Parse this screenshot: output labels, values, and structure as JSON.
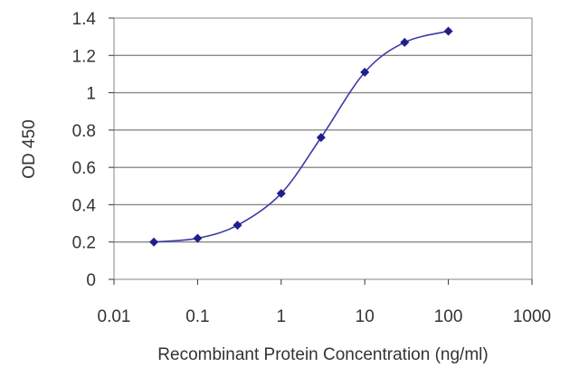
{
  "chart_data": {
    "type": "scatter",
    "title": "",
    "xlabel": "Recombinant Protein Concentration (ng/ml)",
    "ylabel": "OD 450",
    "x_scale": "log",
    "xlim": [
      0.01,
      1000
    ],
    "ylim": [
      0,
      1.4
    ],
    "x_tick_labels": [
      "0.01",
      "0.1",
      "1",
      "10",
      "100",
      "1000"
    ],
    "x_tick_values": [
      0.01,
      0.1,
      1,
      10,
      100,
      1000
    ],
    "y_tick_labels": [
      "0",
      "0.2",
      "0.4",
      "0.6",
      "0.8",
      "1",
      "1.2",
      "1.4"
    ],
    "y_tick_values": [
      0,
      0.2,
      0.4,
      0.6,
      0.8,
      1.0,
      1.2,
      1.4
    ],
    "grid": "horizontal",
    "fit_curve": "sigmoid",
    "series": [
      {
        "x": [
          0.03,
          0.1,
          0.3,
          1,
          3,
          10,
          30,
          100
        ],
        "y": [
          0.2,
          0.22,
          0.29,
          0.46,
          0.76,
          1.11,
          1.27,
          1.33
        ],
        "color": "#1f1f8c"
      }
    ]
  }
}
